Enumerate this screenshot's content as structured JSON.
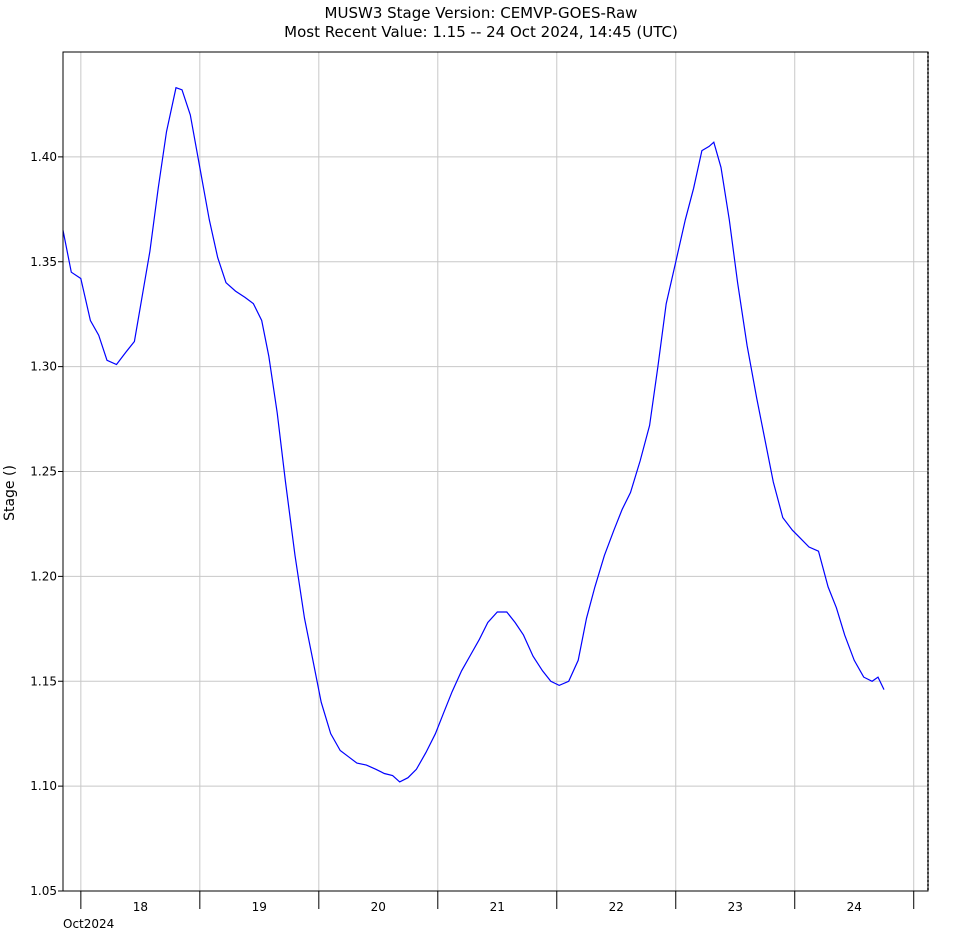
{
  "chart_data": {
    "type": "line",
    "title": "MUSW3  Stage  Version: CEMVP-GOES-Raw",
    "subtitle": "Most Recent Value: 1.15  --  24 Oct 2024, 14:45 (UTC)",
    "ylabel": "Stage ()",
    "xlabel_year": "Oct2024",
    "ylim": [
      1.05,
      1.45
    ],
    "y_ticks": [
      "1.05",
      "1.10",
      "1.15",
      "1.20",
      "1.25",
      "1.30",
      "1.35",
      "1.40"
    ],
    "x_days": [
      "18",
      "19",
      "20",
      "21",
      "22",
      "23",
      "24"
    ],
    "xlim_days": [
      17.35,
      24.62
    ],
    "grid": true,
    "series": [
      {
        "color": "#0000ff",
        "x_unit": "day of October 2024 (fractional, UTC)",
        "points": [
          [
            17.35,
            1.365
          ],
          [
            17.42,
            1.345
          ],
          [
            17.5,
            1.342
          ],
          [
            17.58,
            1.322
          ],
          [
            17.65,
            1.315
          ],
          [
            17.72,
            1.303
          ],
          [
            17.8,
            1.301
          ],
          [
            17.88,
            1.307
          ],
          [
            17.95,
            1.312
          ],
          [
            18.02,
            1.335
          ],
          [
            18.08,
            1.355
          ],
          [
            18.15,
            1.385
          ],
          [
            18.22,
            1.412
          ],
          [
            18.3,
            1.433
          ],
          [
            18.35,
            1.432
          ],
          [
            18.42,
            1.42
          ],
          [
            18.5,
            1.395
          ],
          [
            18.58,
            1.37
          ],
          [
            18.65,
            1.352
          ],
          [
            18.72,
            1.34
          ],
          [
            18.8,
            1.336
          ],
          [
            18.88,
            1.333
          ],
          [
            18.95,
            1.33
          ],
          [
            19.02,
            1.322
          ],
          [
            19.08,
            1.305
          ],
          [
            19.15,
            1.278
          ],
          [
            19.22,
            1.245
          ],
          [
            19.3,
            1.21
          ],
          [
            19.38,
            1.18
          ],
          [
            19.45,
            1.16
          ],
          [
            19.52,
            1.14
          ],
          [
            19.6,
            1.125
          ],
          [
            19.68,
            1.117
          ],
          [
            19.75,
            1.114
          ],
          [
            19.82,
            1.111
          ],
          [
            19.9,
            1.11
          ],
          [
            19.98,
            1.108
          ],
          [
            20.05,
            1.106
          ],
          [
            20.12,
            1.105
          ],
          [
            20.18,
            1.102
          ],
          [
            20.25,
            1.104
          ],
          [
            20.32,
            1.108
          ],
          [
            20.4,
            1.116
          ],
          [
            20.48,
            1.125
          ],
          [
            20.55,
            1.135
          ],
          [
            20.62,
            1.145
          ],
          [
            20.7,
            1.155
          ],
          [
            20.78,
            1.163
          ],
          [
            20.85,
            1.17
          ],
          [
            20.92,
            1.178
          ],
          [
            21.0,
            1.183
          ],
          [
            21.08,
            1.183
          ],
          [
            21.15,
            1.178
          ],
          [
            21.22,
            1.172
          ],
          [
            21.3,
            1.162
          ],
          [
            21.38,
            1.155
          ],
          [
            21.45,
            1.15
          ],
          [
            21.52,
            1.148
          ],
          [
            21.6,
            1.15
          ],
          [
            21.68,
            1.16
          ],
          [
            21.75,
            1.18
          ],
          [
            21.82,
            1.195
          ],
          [
            21.9,
            1.21
          ],
          [
            21.98,
            1.222
          ],
          [
            22.05,
            1.232
          ],
          [
            22.12,
            1.24
          ],
          [
            22.2,
            1.255
          ],
          [
            22.28,
            1.272
          ],
          [
            22.35,
            1.3
          ],
          [
            22.42,
            1.33
          ],
          [
            22.5,
            1.35
          ],
          [
            22.58,
            1.37
          ],
          [
            22.65,
            1.385
          ],
          [
            22.72,
            1.403
          ],
          [
            22.78,
            1.405
          ],
          [
            22.82,
            1.407
          ],
          [
            22.88,
            1.395
          ],
          [
            22.95,
            1.37
          ],
          [
            23.02,
            1.34
          ],
          [
            23.1,
            1.31
          ],
          [
            23.18,
            1.285
          ],
          [
            23.25,
            1.265
          ],
          [
            23.32,
            1.245
          ],
          [
            23.4,
            1.228
          ],
          [
            23.48,
            1.222
          ],
          [
            23.55,
            1.218
          ],
          [
            23.62,
            1.214
          ],
          [
            23.7,
            1.212
          ],
          [
            23.78,
            1.195
          ],
          [
            23.85,
            1.185
          ],
          [
            23.92,
            1.172
          ],
          [
            24.0,
            1.16
          ],
          [
            24.08,
            1.152
          ],
          [
            24.15,
            1.15
          ],
          [
            24.2,
            1.152
          ],
          [
            24.25,
            1.146
          ]
        ]
      }
    ]
  }
}
